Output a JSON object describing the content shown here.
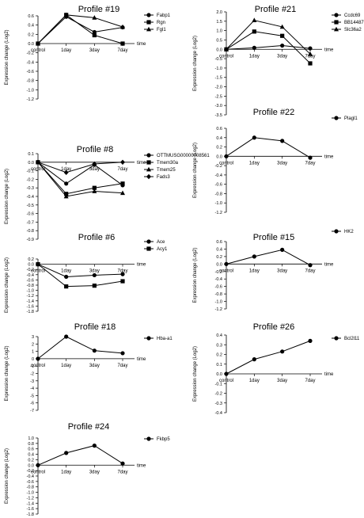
{
  "figure": {
    "x_categories": [
      "control",
      "1day",
      "3day",
      "7day"
    ],
    "time_label": "time",
    "y_label": "Expression change (Log2)"
  },
  "chart_data": [
    {
      "type": "line",
      "title": "Profile #19",
      "xlabel": "time",
      "ylabel": "Expression change (Log2)",
      "categories": [
        "control",
        "1day",
        "3day",
        "7day"
      ],
      "y_ticks": [
        "0.6",
        "0.4",
        "0.2",
        "0.0",
        "-0.2",
        "-0.4",
        "-0.6",
        "-0.8",
        "-1.0",
        "-1.2"
      ],
      "ylim": [
        -1.2,
        0.6
      ],
      "legend": "top-right",
      "series": [
        {
          "name": "Fabp1",
          "marker": "circle",
          "values": [
            0,
            0.58,
            0.25,
            0.35
          ]
        },
        {
          "name": "Rgn",
          "marker": "square",
          "values": [
            0,
            0.62,
            0.18,
            0.0
          ]
        },
        {
          "name": "Fgl1",
          "marker": "triangle",
          "values": [
            0,
            0.62,
            0.56,
            0.36
          ]
        }
      ]
    },
    {
      "type": "line",
      "title": "Profile #21",
      "xlabel": "time",
      "ylabel": "Expression change (Log2)",
      "categories": [
        "control",
        "1day",
        "3day",
        "7day"
      ],
      "y_ticks": [
        "2.0",
        "1.5",
        "1.0",
        "0.5",
        "0.0",
        "-0.5",
        "-1.0",
        "-1.5",
        "-2.0",
        "-2.5",
        "-3.0",
        "-3.5"
      ],
      "ylim": [
        -3.5,
        2.0
      ],
      "legend": "top-right",
      "series": [
        {
          "name": "Ccdc69",
          "marker": "circle",
          "values": [
            0,
            0.08,
            0.2,
            0.05
          ]
        },
        {
          "name": "BB144871",
          "marker": "square",
          "values": [
            0,
            0.95,
            0.72,
            -0.75
          ]
        },
        {
          "name": "Slc36a2",
          "marker": "triangle",
          "values": [
            0,
            1.55,
            1.2,
            -0.25
          ]
        }
      ]
    },
    {
      "type": "line",
      "title": "Profile #8",
      "xlabel": "time",
      "ylabel": "Expression change (Log2)",
      "categories": [
        "control",
        "1day",
        "3day",
        "7day"
      ],
      "y_ticks": [
        "0.1",
        "0.0",
        "-0.1",
        "-0.2",
        "-0.3",
        "-0.4",
        "-0.5",
        "-0.6",
        "-0.7",
        "-0.8",
        "-0.9"
      ],
      "ylim": [
        -0.9,
        0.1
      ],
      "legend": "top-right",
      "series": [
        {
          "name": "OTTMUSG00000008561",
          "marker": "circle",
          "values": [
            0,
            -0.25,
            -0.03,
            -0.27
          ]
        },
        {
          "name": "Tmem30a",
          "marker": "square",
          "values": [
            0,
            -0.37,
            -0.3,
            -0.25
          ]
        },
        {
          "name": "Tmem25",
          "marker": "triangle",
          "values": [
            0,
            -0.4,
            -0.34,
            -0.36
          ]
        },
        {
          "name": "Fads3",
          "marker": "diamond",
          "values": [
            0,
            -0.12,
            -0.02,
            0.0
          ]
        }
      ]
    },
    {
      "type": "line",
      "title": "Profile #22",
      "xlabel": "time",
      "ylabel": "Expression change (Log2)",
      "categories": [
        "control",
        "1day",
        "3day",
        "7day"
      ],
      "y_ticks": [
        "0.6",
        "0.4",
        "0.2",
        "0.0",
        "-0.2",
        "-0.4",
        "-0.6",
        "-0.8",
        "-1.0",
        "-1.2"
      ],
      "ylim": [
        -1.2,
        0.6
      ],
      "legend": "top-right",
      "series": [
        {
          "name": "Plagl1",
          "marker": "circle",
          "values": [
            0,
            0.4,
            0.33,
            -0.03
          ]
        }
      ]
    },
    {
      "type": "line",
      "title": "Profile #6",
      "xlabel": "time",
      "ylabel": "Expression change (Log2)",
      "categories": [
        "control",
        "1day",
        "3day",
        "7day"
      ],
      "y_ticks": [
        "0.2",
        "0.0",
        "-0.2",
        "-0.4",
        "-0.6",
        "-0.8",
        "-1.0",
        "-1.2",
        "-1.4",
        "-1.6",
        "-1.8"
      ],
      "ylim": [
        -1.8,
        0.2
      ],
      "legend": "top-right",
      "series": [
        {
          "name": "Ace",
          "marker": "circle",
          "values": [
            0,
            -0.48,
            -0.42,
            -0.38
          ]
        },
        {
          "name": "Acy1",
          "marker": "square",
          "values": [
            0,
            -0.85,
            -0.82,
            -0.65
          ]
        }
      ]
    },
    {
      "type": "line",
      "title": "Profile #15",
      "xlabel": "time",
      "ylabel": "Expression change (Log2)",
      "categories": [
        "control",
        "1day",
        "3day",
        "7day"
      ],
      "y_ticks": [
        "0.6",
        "0.4",
        "0.2",
        "0.0",
        "-0.2",
        "-0.4",
        "-0.6",
        "-0.8",
        "-1.0",
        "-1.2"
      ],
      "ylim": [
        -1.2,
        0.6
      ],
      "legend": "top-right",
      "series": [
        {
          "name": "HK2",
          "marker": "circle",
          "values": [
            0,
            0.2,
            0.38,
            -0.03
          ]
        }
      ]
    },
    {
      "type": "line",
      "title": "Profile #18",
      "xlabel": "time",
      "ylabel": "Expression change (Log2)",
      "categories": [
        "control",
        "1day",
        "3day",
        "7day"
      ],
      "y_ticks": [
        "3",
        "2",
        "1",
        "0",
        "-1",
        "-2",
        "-3",
        "-4",
        "-5",
        "-6",
        "-7"
      ],
      "ylim": [
        -7,
        3
      ],
      "legend": "top-right",
      "series": [
        {
          "name": "Hba-a1",
          "marker": "circle",
          "values": [
            0,
            3.0,
            1.1,
            0.75
          ]
        }
      ]
    },
    {
      "type": "line",
      "title": "Profile #26",
      "xlabel": "time",
      "ylabel": "Expression change (Log2)",
      "categories": [
        "control",
        "1day",
        "3day",
        "7day"
      ],
      "y_ticks": [
        "0.4",
        "0.3",
        "0.2",
        "0.1",
        "0.0",
        "-0.1",
        "-0.2",
        "-0.3",
        "-0.4"
      ],
      "ylim": [
        -0.4,
        0.4
      ],
      "legend": "top-right",
      "series": [
        {
          "name": "Bcl2l11",
          "marker": "circle",
          "values": [
            0,
            0.15,
            0.23,
            0.34
          ]
        }
      ]
    },
    {
      "type": "line",
      "title": "Profile #24",
      "xlabel": "time",
      "ylabel": "Expression change (Log2)",
      "categories": [
        "control",
        "1day",
        "3day",
        "7day"
      ],
      "y_ticks": [
        "1.0",
        "0.8",
        "0.6",
        "0.4",
        "0.2",
        "0.0",
        "-0.2",
        "-0.4",
        "-0.6",
        "-0.8",
        "-1.0",
        "-1.2",
        "-1.4",
        "-1.6",
        "-1.8"
      ],
      "ylim": [
        -1.8,
        1.0
      ],
      "legend": "top-right",
      "series": [
        {
          "name": "Fkbp5",
          "marker": "circle",
          "values": [
            0,
            0.45,
            0.72,
            0.06
          ]
        }
      ]
    }
  ]
}
